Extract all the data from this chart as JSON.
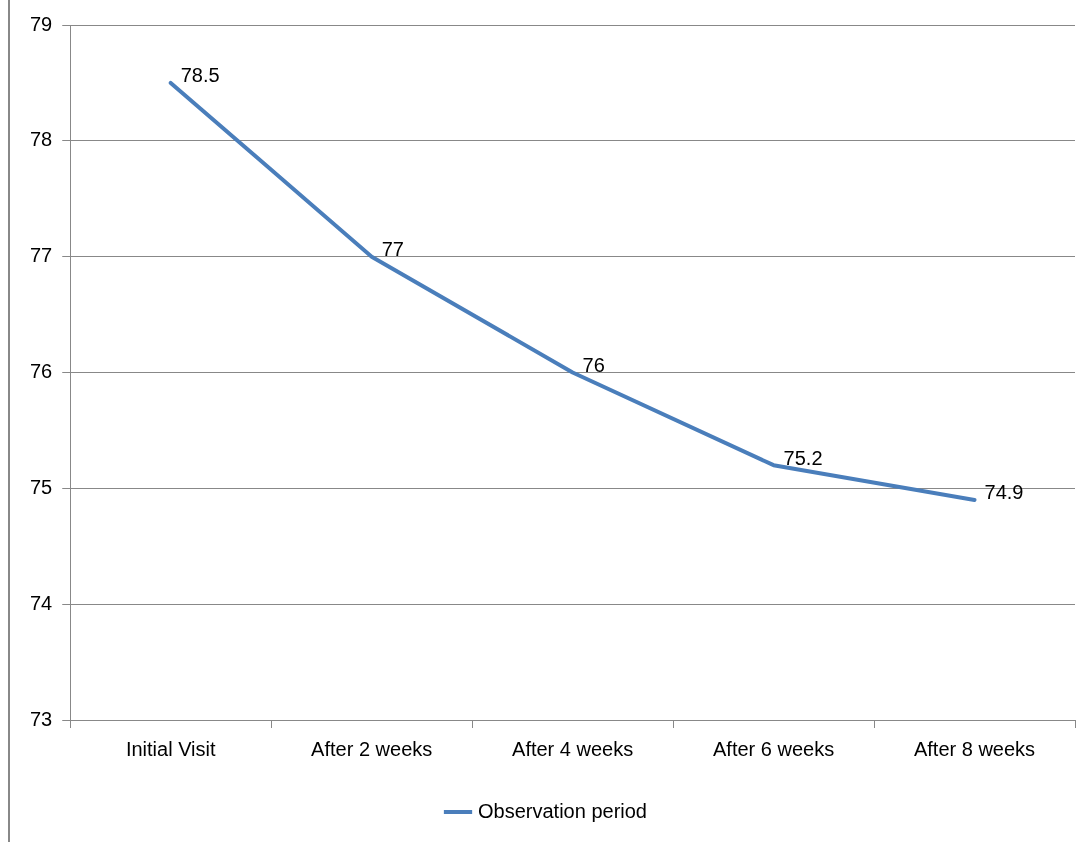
{
  "chart_data": {
    "type": "line",
    "categories": [
      "Initial Visit",
      "After 2 weeks",
      "After 4 weeks",
      "After 6 weeks",
      "After 8 weeks"
    ],
    "series": [
      {
        "name": "Observation period",
        "color": "#4a7ebb",
        "values": [
          78.5,
          77,
          76,
          75.2,
          74.9
        ]
      }
    ],
    "ylim": [
      73,
      79
    ],
    "yticks": [
      73,
      74,
      75,
      76,
      77,
      78,
      79
    ],
    "grid": "y",
    "legend": "bottom",
    "marker": "none",
    "line_style": "solid",
    "data_labels": true
  }
}
